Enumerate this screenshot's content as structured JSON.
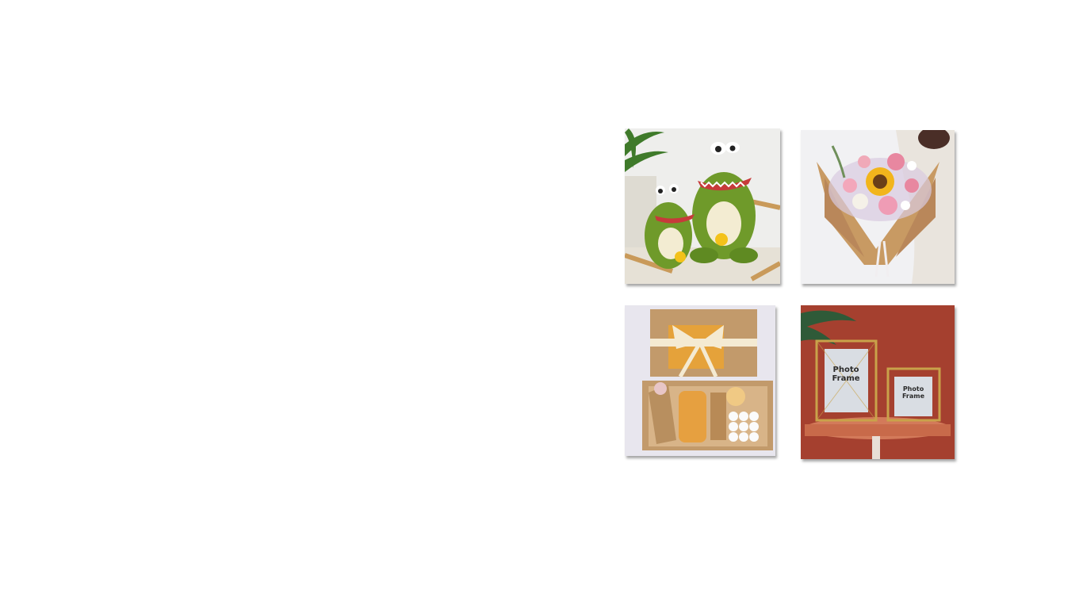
{
  "products": [
    {
      "name": "dinosaur-plush-toys",
      "icon": "dinosaur-plush-image"
    },
    {
      "name": "crochet-flower-bouquet",
      "icon": "bouquet-image"
    },
    {
      "name": "gift-box-set",
      "icon": "gift-box-image"
    },
    {
      "name": "gold-photo-frames",
      "icon": "photo-frame-image",
      "frame_large_line1": "Photo",
      "frame_large_line2": "Frame",
      "frame_small_line1": "Photo",
      "frame_small_line2": "Frame"
    }
  ],
  "colors": {
    "background": "#ffffff",
    "dino_green": "#6f9a2a",
    "kraft_paper": "#c89a63",
    "frame_wall": "#a5402f",
    "frame_gold": "#c9a24a"
  }
}
